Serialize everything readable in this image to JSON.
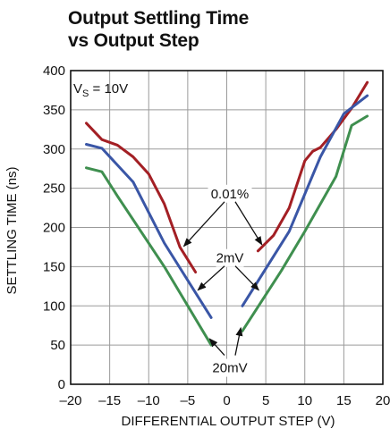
{
  "title_lines": [
    "Output Settling Time",
    "vs Output Step"
  ],
  "chart_data": {
    "type": "line",
    "title": "Output Settling Time vs Output Step",
    "xlabel": "DIFFERENTIAL OUTPUT STEP (V)",
    "ylabel": "SETTLING TIME (ns)",
    "xlim": [
      -20,
      20
    ],
    "ylim": [
      0,
      400
    ],
    "xticks": [
      -20,
      -15,
      -10,
      -5,
      0,
      5,
      10,
      15,
      20
    ],
    "xtick_labels": [
      "–20",
      "–15",
      "–10",
      "–5",
      "0",
      "5",
      "10",
      "15",
      "20"
    ],
    "yticks": [
      0,
      50,
      100,
      150,
      200,
      250,
      300,
      350,
      400
    ],
    "grid": true,
    "legend": "none",
    "condition_label": {
      "main": "V",
      "sub": "S",
      "rest": " = 10V"
    },
    "series": [
      {
        "name": "0.01%",
        "color": "#a31f24",
        "segments": [
          {
            "x": [
              -18,
              -16,
              -14,
              -12,
              -10,
              -8,
              -6,
              -4
            ],
            "y": [
              333,
              312,
              305,
              290,
              268,
              230,
              175,
              143
            ]
          },
          {
            "x": [
              4,
              6,
              8,
              10,
              11,
              12,
              14,
              16,
              18
            ],
            "y": [
              170,
              190,
              225,
              285,
              297,
              302,
              325,
              352,
              385
            ]
          }
        ]
      },
      {
        "name": "2mV",
        "color": "#3a56a6",
        "segments": [
          {
            "x": [
              -18,
              -16,
              -12,
              -8,
              -2
            ],
            "y": [
              306,
              301,
              258,
              180,
              85
            ]
          },
          {
            "x": [
              2,
              8,
              12,
              15,
              18
            ],
            "y": [
              100,
              195,
              290,
              345,
              368
            ]
          }
        ]
      },
      {
        "name": "20mV",
        "color": "#3f8f4f",
        "segments": [
          {
            "x": [
              -18,
              -16,
              -14,
              -8,
              -2
            ],
            "y": [
              276,
              271,
              240,
              150,
              50
            ]
          },
          {
            "x": [
              2,
              7,
              10,
              14,
              16,
              18
            ],
            "y": [
              68,
              145,
              195,
              265,
              330,
              342
            ]
          }
        ]
      }
    ],
    "annotations": [
      {
        "text": "0.01%",
        "x": 0.4,
        "y": 243,
        "arrows_to": [
          [
            -5.5,
            176
          ],
          [
            4.5,
            178
          ]
        ]
      },
      {
        "text": "2mV",
        "x": 0.4,
        "y": 161,
        "arrows_to": [
          [
            -3.7,
            120
          ],
          [
            4.1,
            120
          ]
        ]
      },
      {
        "text": "20mV",
        "x": 0.4,
        "y": 21,
        "arrows_to": [
          [
            -2.2,
            58
          ],
          [
            1.8,
            72
          ]
        ]
      }
    ]
  }
}
